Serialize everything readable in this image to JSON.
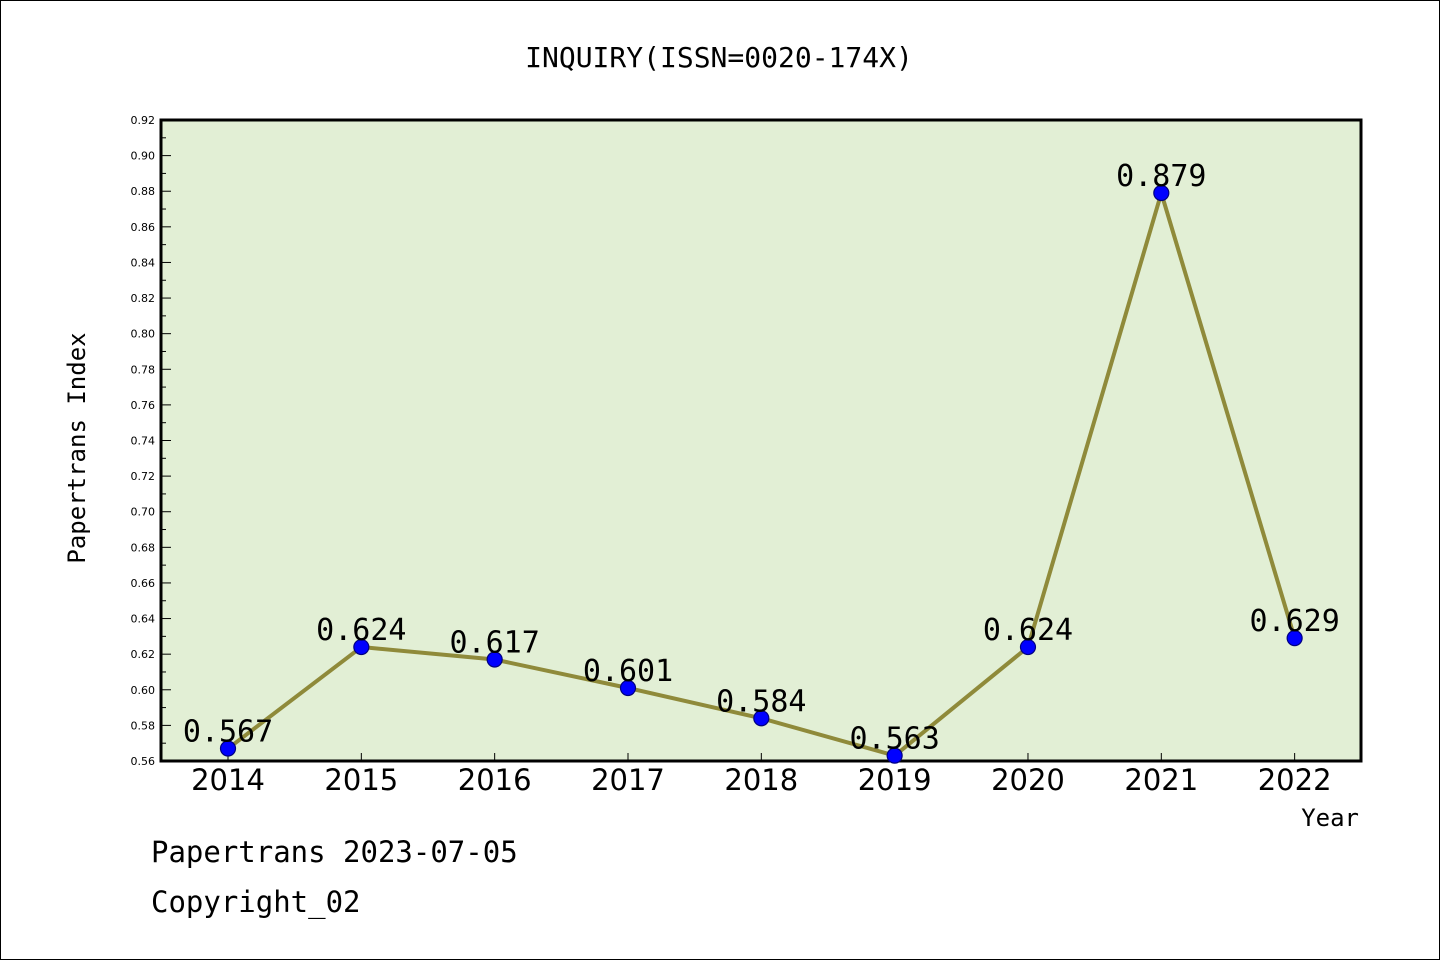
{
  "chart_data": {
    "type": "line",
    "title": "INQUIRY(ISSN=0020-174X)",
    "xlabel": "Year",
    "ylabel": "Papertrans Index",
    "categories": [
      "2014",
      "2015",
      "2016",
      "2017",
      "2018",
      "2019",
      "2020",
      "2021",
      "2022"
    ],
    "series": [
      {
        "values": [
          0.567,
          0.624,
          0.617,
          0.601,
          0.584,
          0.563,
          0.624,
          0.879,
          0.629
        ]
      }
    ],
    "data_labels": [
      "0.567",
      "0.624",
      "0.617",
      "0.601",
      "0.584",
      "0.563",
      "0.624",
      "0.879",
      "0.629"
    ],
    "ylim": [
      0.56,
      0.92
    ],
    "yticks": [
      "0.56",
      "0.58",
      "0.60",
      "0.62",
      "0.64",
      "0.66",
      "0.68",
      "0.70",
      "0.72",
      "0.74",
      "0.76",
      "0.78",
      "0.80",
      "0.82",
      "0.84",
      "0.86",
      "0.88",
      "0.90",
      "0.92"
    ],
    "grid": false,
    "legend": "none",
    "colors": {
      "plot_background": "#e2efd5",
      "line": "#8f8a3a",
      "marker": "#0000ff",
      "marker_edge": "#000080"
    }
  },
  "footer": {
    "date": "Papertrans 2023-07-05",
    "copyright": "Copyright_02"
  }
}
